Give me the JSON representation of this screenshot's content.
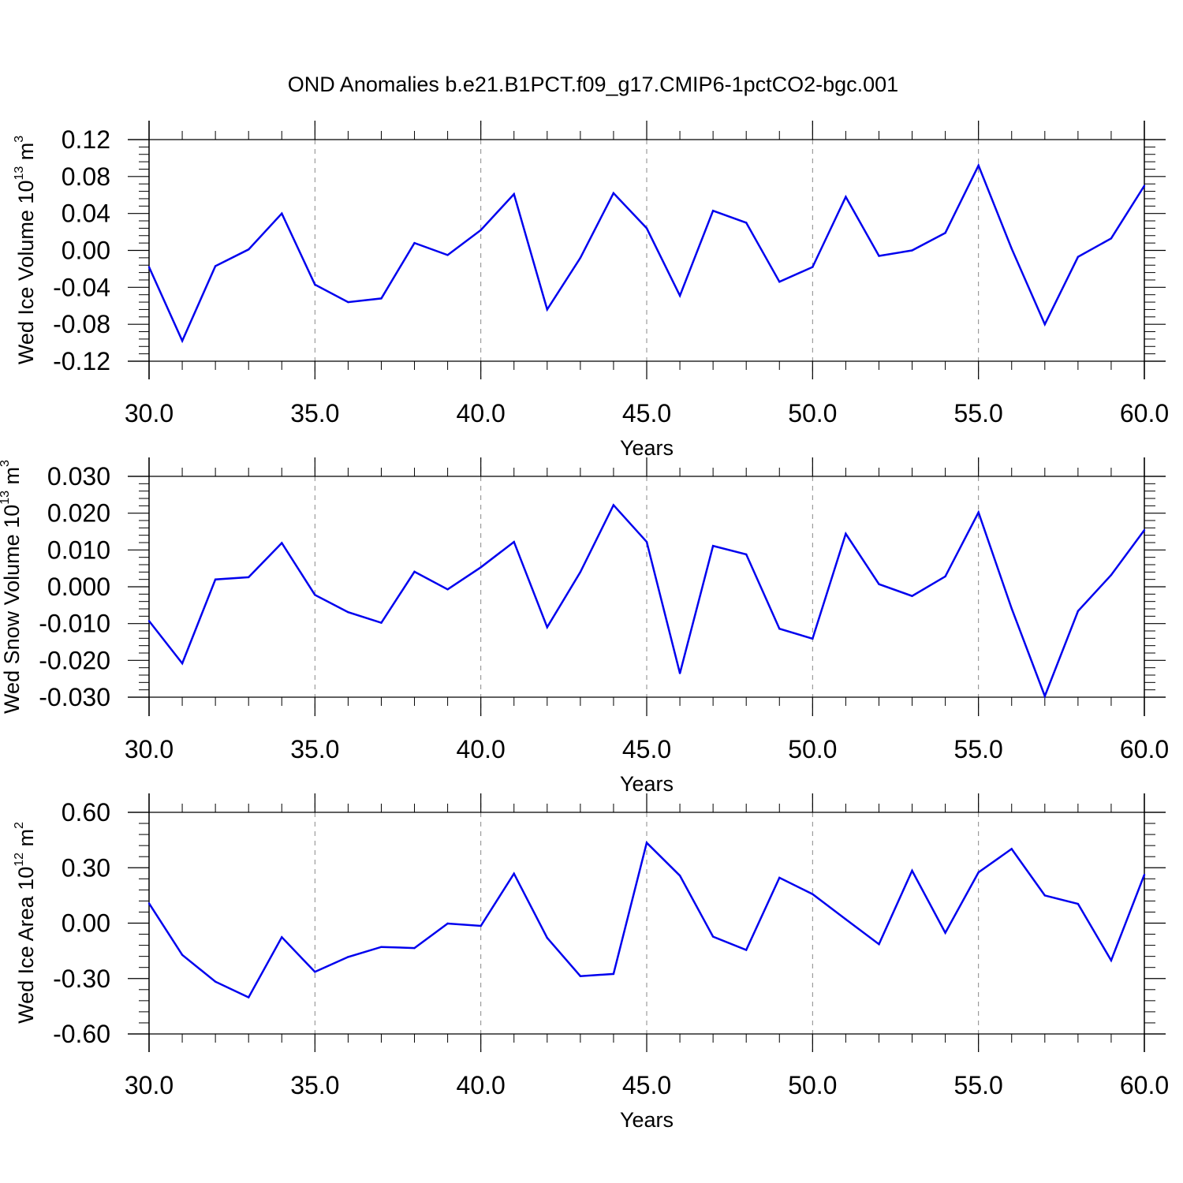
{
  "figure": {
    "title": "OND Anomalies b.e21.B1PCT.f09_g17.CMIP6-1pctCO2-bgc.001"
  },
  "colors": {
    "series_line": "#0000ee",
    "axis": "#000000",
    "grid": "#888888",
    "background": "#ffffff"
  },
  "chart_data": [
    {
      "type": "line",
      "title": "",
      "xlabel": "Years",
      "ylabel": {
        "text": "Wed Ice Volume 10",
        "exponent": "13",
        "unit": " m",
        "unit_exponent": "3"
      },
      "xlim": [
        30,
        60
      ],
      "ylim": [
        -0.12,
        0.12
      ],
      "grid": {
        "x": true,
        "y": false,
        "x_every": 5
      },
      "x_ticks": [
        30,
        35,
        40,
        45,
        50,
        55,
        60
      ],
      "x_tick_labels": [
        "30.0",
        "35.0",
        "40.0",
        "45.0",
        "50.0",
        "55.0",
        "60.0"
      ],
      "y_ticks": [
        -0.12,
        -0.08,
        -0.04,
        0.0,
        0.04,
        0.08,
        0.12
      ],
      "y_tick_labels": [
        "-0.12",
        "-0.08",
        "-0.04",
        "0.00",
        "0.04",
        "0.08",
        "0.12"
      ],
      "x": [
        30,
        31,
        32,
        33,
        34,
        35,
        36,
        37,
        38,
        39,
        40,
        41,
        42,
        43,
        44,
        45,
        46,
        47,
        48,
        49,
        50,
        51,
        52,
        53,
        54,
        55,
        56,
        57,
        58,
        59,
        60
      ],
      "series": [
        {
          "values": [
            -0.018,
            -0.098,
            -0.017,
            0.001,
            0.04,
            -0.037,
            -0.056,
            -0.052,
            0.008,
            -0.005,
            0.022,
            0.061,
            -0.064,
            -0.008,
            0.062,
            0.024,
            -0.049,
            0.043,
            0.03,
            -0.034,
            -0.018,
            0.058,
            -0.006,
            0.0,
            0.019,
            0.092,
            0.002,
            -0.08,
            -0.007,
            0.013,
            0.07
          ]
        }
      ]
    },
    {
      "type": "line",
      "title": "",
      "xlabel": "Years",
      "ylabel": {
        "text": "Wed Snow Volume 10",
        "exponent": "13",
        "unit": " m",
        "unit_exponent": "3"
      },
      "xlim": [
        30,
        60
      ],
      "ylim": [
        -0.03,
        0.03
      ],
      "grid": {
        "x": true,
        "y": false,
        "x_every": 5
      },
      "x_ticks": [
        30,
        35,
        40,
        45,
        50,
        55,
        60
      ],
      "x_tick_labels": [
        "30.0",
        "35.0",
        "40.0",
        "45.0",
        "50.0",
        "55.0",
        "60.0"
      ],
      "y_ticks": [
        -0.03,
        -0.02,
        -0.01,
        0.0,
        0.01,
        0.02,
        0.03
      ],
      "y_tick_labels": [
        "-0.030",
        "-0.020",
        "-0.010",
        "0.000",
        "0.010",
        "0.020",
        "0.030"
      ],
      "x": [
        30,
        31,
        32,
        33,
        34,
        35,
        36,
        37,
        38,
        39,
        40,
        41,
        42,
        43,
        44,
        45,
        46,
        47,
        48,
        49,
        50,
        51,
        52,
        53,
        54,
        55,
        56,
        57,
        58,
        59,
        60
      ],
      "series": [
        {
          "values": [
            -0.0093,
            -0.0208,
            0.002,
            0.0026,
            0.0119,
            -0.0022,
            -0.0069,
            -0.0098,
            0.0041,
            -0.0007,
            0.0053,
            0.0122,
            -0.011,
            0.004,
            0.0222,
            0.0122,
            -0.0235,
            0.0111,
            0.0088,
            -0.0114,
            -0.0141,
            0.0144,
            0.0007,
            -0.0025,
            0.0028,
            0.0202,
            -0.0059,
            -0.0297,
            -0.0066,
            0.0032,
            0.0154
          ]
        }
      ]
    },
    {
      "type": "line",
      "title": "",
      "xlabel": "Years",
      "ylabel": {
        "text": "Wed Ice Area 10",
        "exponent": "12",
        "unit": " m",
        "unit_exponent": "2"
      },
      "xlim": [
        30,
        60
      ],
      "ylim": [
        -0.6,
        0.6
      ],
      "grid": {
        "x": true,
        "y": false,
        "x_every": 5
      },
      "x_ticks": [
        30,
        35,
        40,
        45,
        50,
        55,
        60
      ],
      "x_tick_labels": [
        "30.0",
        "35.0",
        "40.0",
        "45.0",
        "50.0",
        "55.0",
        "60.0"
      ],
      "y_ticks": [
        -0.6,
        -0.3,
        0.0,
        0.3,
        0.6
      ],
      "y_tick_labels": [
        "-0.60",
        "-0.30",
        "0.00",
        "0.30",
        "0.60"
      ],
      "x": [
        30,
        31,
        32,
        33,
        34,
        35,
        36,
        37,
        38,
        39,
        40,
        41,
        42,
        43,
        44,
        45,
        46,
        47,
        48,
        49,
        50,
        51,
        52,
        53,
        54,
        55,
        56,
        57,
        58,
        59,
        60
      ],
      "series": [
        {
          "values": [
            0.107,
            -0.172,
            -0.317,
            -0.402,
            -0.076,
            -0.264,
            -0.183,
            -0.129,
            -0.135,
            -0.002,
            -0.015,
            0.268,
            -0.08,
            -0.287,
            -0.275,
            0.435,
            0.257,
            -0.073,
            -0.145,
            0.246,
            0.157,
            0.021,
            -0.114,
            0.284,
            -0.052,
            0.275,
            0.402,
            0.15,
            0.104,
            -0.202,
            0.262
          ]
        }
      ]
    }
  ]
}
